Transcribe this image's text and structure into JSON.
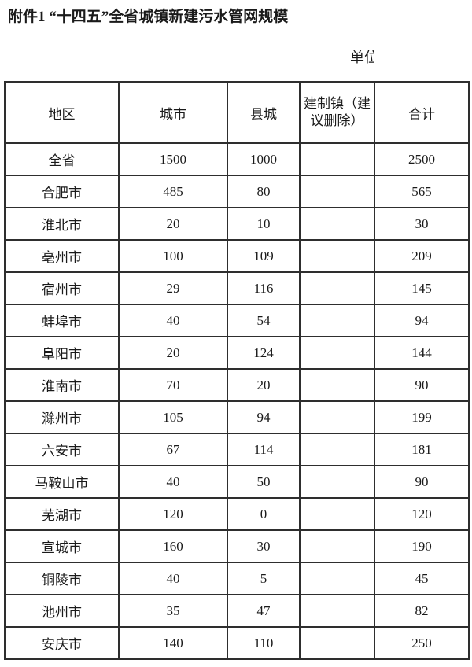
{
  "page": {
    "title": "附件1 “十四五”全省城镇新建污水管网规模",
    "unit_note": "单位"
  },
  "table": {
    "columns": [
      "地区",
      "城市",
      "县城",
      "建制镇（建议删除）",
      "合计"
    ],
    "rows": [
      [
        "全省",
        "1500",
        "1000",
        "",
        "2500"
      ],
      [
        "合肥市",
        "485",
        "80",
        "",
        "565"
      ],
      [
        "淮北市",
        "20",
        "10",
        "",
        "30"
      ],
      [
        "亳州市",
        "100",
        "109",
        "",
        "209"
      ],
      [
        "宿州市",
        "29",
        "116",
        "",
        "145"
      ],
      [
        "蚌埠市",
        "40",
        "54",
        "",
        "94"
      ],
      [
        "阜阳市",
        "20",
        "124",
        "",
        "144"
      ],
      [
        "淮南市",
        "70",
        "20",
        "",
        "90"
      ],
      [
        "滁州市",
        "105",
        "94",
        "",
        "199"
      ],
      [
        "六安市",
        "67",
        "114",
        "",
        "181"
      ],
      [
        "马鞍山市",
        "40",
        "50",
        "",
        "90"
      ],
      [
        "芜湖市",
        "120",
        "0",
        "",
        "120"
      ],
      [
        "宣城市",
        "160",
        "30",
        "",
        "190"
      ],
      [
        "铜陵市",
        "40",
        "5",
        "",
        "45"
      ],
      [
        "池州市",
        "35",
        "47",
        "",
        "82"
      ],
      [
        "安庆市",
        "140",
        "110",
        "",
        "250"
      ]
    ]
  }
}
